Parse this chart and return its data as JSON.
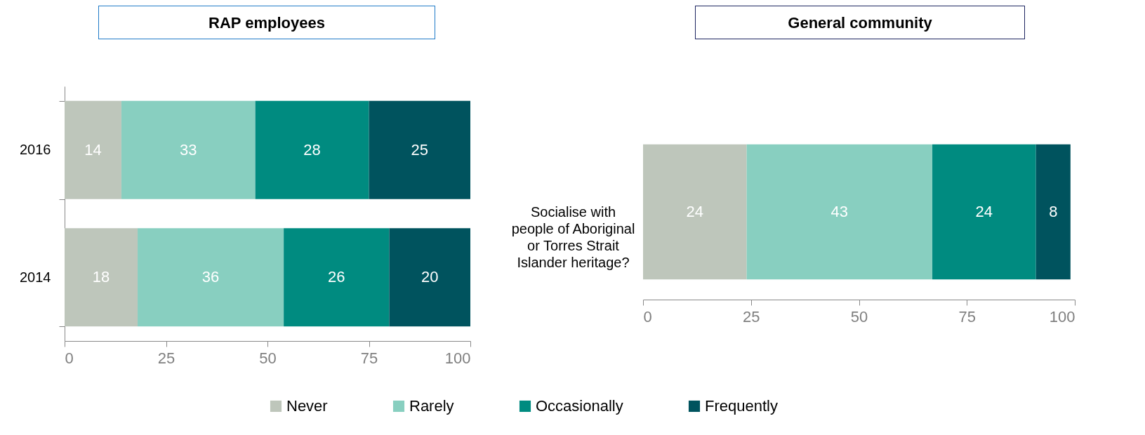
{
  "chart_data": [
    {
      "type": "bar",
      "title": "RAP employees",
      "orientation": "horizontal",
      "stacked": true,
      "categories": [
        "2016",
        "2014"
      ],
      "series": [
        {
          "name": "Never",
          "color": "#bec6bb",
          "values": [
            14,
            18
          ]
        },
        {
          "name": "Rarely",
          "color": "#88cfc0",
          "values": [
            33,
            36
          ]
        },
        {
          "name": "Occasionally",
          "color": "#008b80",
          "values": [
            28,
            26
          ]
        },
        {
          "name": "Frequently",
          "color": "#00535e",
          "values": [
            25,
            20
          ]
        }
      ],
      "xlim": [
        0,
        100
      ],
      "xticks": [
        0,
        25,
        50,
        75,
        100
      ],
      "data_labels": true,
      "grid": false,
      "legend": "bottom"
    },
    {
      "type": "bar",
      "title": "General community",
      "orientation": "horizontal",
      "stacked": true,
      "categories": [
        "Socialise with people of Aboriginal or Torres Strait Islander heritage?"
      ],
      "series": [
        {
          "color": "#bec6bb",
          "values": [
            24
          ]
        },
        {
          "color": "#88cfc0",
          "values": [
            43
          ]
        },
        {
          "color": "#008b80",
          "values": [
            24
          ]
        },
        {
          "color": "#00535e",
          "values": [
            8
          ]
        }
      ],
      "xlim": [
        0,
        100
      ],
      "xticks": [
        0,
        25,
        50,
        75,
        100
      ],
      "data_labels": true,
      "grid": false,
      "legend": false
    }
  ]
}
